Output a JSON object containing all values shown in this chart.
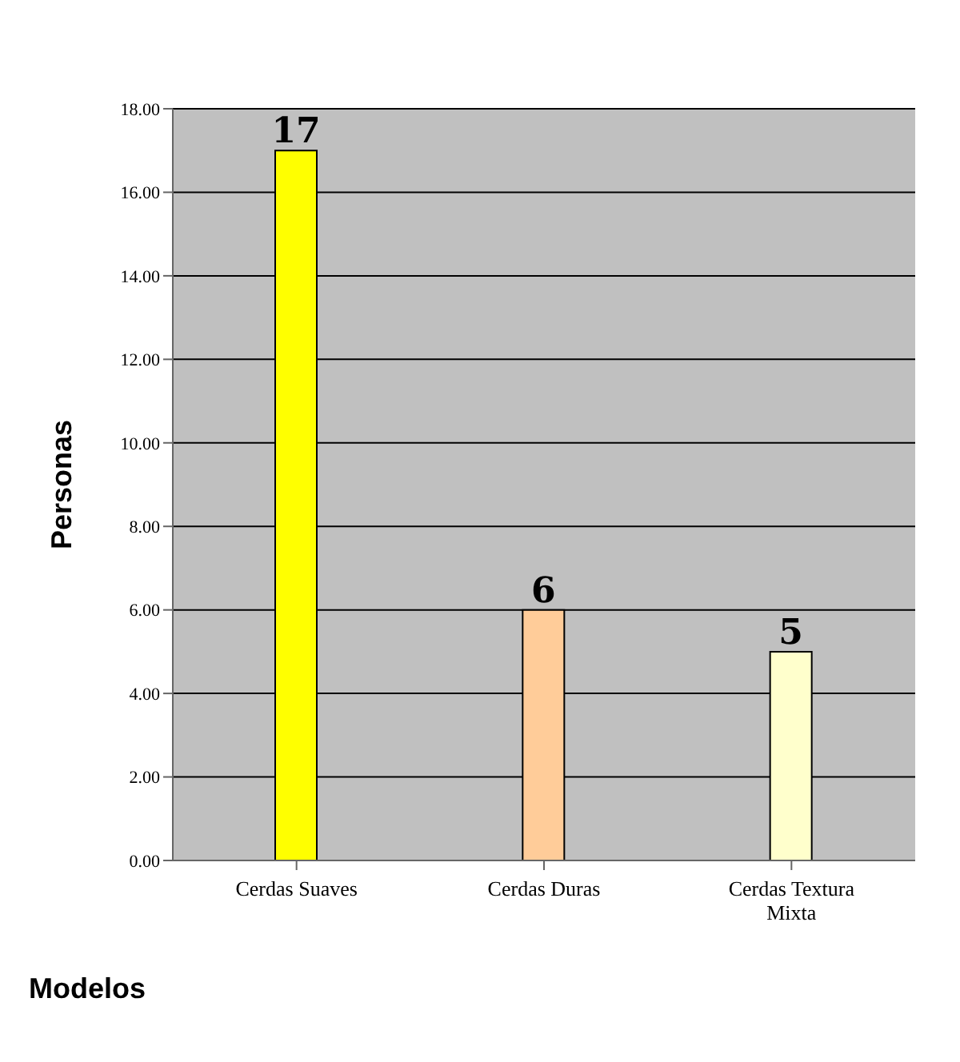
{
  "chart_data": {
    "type": "bar",
    "xlabel": "Modelos",
    "ylabel": "Personas",
    "categories": [
      "Cerdas Suaves",
      "Cerdas Duras",
      "Cerdas Textura Mixta"
    ],
    "values": [
      17,
      6,
      5
    ],
    "colors": [
      "#ffff00",
      "#ffcc99",
      "#ffffcc"
    ],
    "ylim": [
      0,
      18
    ],
    "yticks": [
      {
        "value": 0,
        "label": "0.00"
      },
      {
        "value": 2,
        "label": "2.00"
      },
      {
        "value": 4,
        "label": "4.00"
      },
      {
        "value": 6,
        "label": "6.00"
      },
      {
        "value": 8,
        "label": "8.00"
      },
      {
        "value": 10,
        "label": "10.00"
      },
      {
        "value": 12,
        "label": "12.00"
      },
      {
        "value": 14,
        "label": "14.00"
      },
      {
        "value": 16,
        "label": "16.00"
      },
      {
        "value": 18,
        "label": "18.00"
      }
    ],
    "grid": "y",
    "data_labels": true
  }
}
